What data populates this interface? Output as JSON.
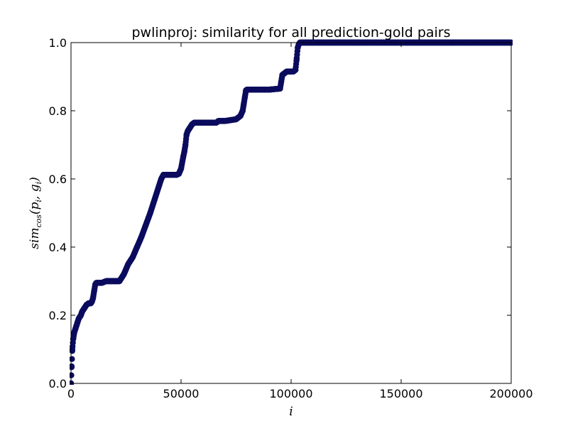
{
  "chart_data": {
    "type": "scatter",
    "title": "pwlinproj: similarity for all prediction-gold pairs",
    "xlabel": "i",
    "ylabel": "sim_cos(p_i, g_i)",
    "xlim": [
      0,
      200000
    ],
    "ylim": [
      0,
      1.0
    ],
    "xticks": [
      0,
      50000,
      100000,
      150000,
      200000
    ],
    "xtick_labels": [
      "0",
      "50000",
      "100000",
      "150000",
      "200000"
    ],
    "yticks": [
      0,
      0.2,
      0.4,
      0.6,
      0.8,
      1.0
    ],
    "ytick_labels": [
      "0.0",
      "0.2",
      "0.4",
      "0.6",
      "0.8",
      "1.0"
    ],
    "grid": false,
    "legend": "none",
    "marker_color": "#0b0b5e",
    "series": [
      {
        "x": [
          0,
          300,
          600,
          1000,
          1500,
          2000,
          2500,
          3000,
          3500,
          4500,
          5000,
          6000,
          7000,
          8000,
          9000,
          9500,
          10000,
          10500,
          11000,
          11500,
          12000,
          14000,
          16000,
          18000,
          20000,
          22000,
          22500,
          23000,
          24000,
          25000,
          26000,
          27000,
          28000,
          29000,
          30000,
          32000,
          34000,
          36000,
          38000,
          40000,
          41000,
          42000,
          45000,
          48000,
          49000,
          50000,
          51000,
          51500,
          52000,
          52500,
          53000,
          54000,
          55000,
          56000,
          58000,
          62000,
          66000,
          67000,
          68000,
          70000,
          75000,
          76000,
          77000,
          78000,
          78500,
          79000,
          79500,
          80000,
          85000,
          90000,
          95000,
          95500,
          96000,
          97000,
          98000,
          100000,
          101000,
          102000,
          102500,
          103000,
          103500,
          104000,
          110000,
          130000,
          150000,
          170000,
          200000
        ],
        "y": [
          0.0,
          0.05,
          0.1,
          0.13,
          0.15,
          0.16,
          0.17,
          0.18,
          0.19,
          0.2,
          0.21,
          0.22,
          0.23,
          0.235,
          0.235,
          0.24,
          0.25,
          0.27,
          0.29,
          0.295,
          0.295,
          0.295,
          0.3,
          0.3,
          0.3,
          0.3,
          0.305,
          0.31,
          0.32,
          0.335,
          0.35,
          0.36,
          0.37,
          0.385,
          0.4,
          0.43,
          0.465,
          0.5,
          0.54,
          0.58,
          0.6,
          0.612,
          0.612,
          0.612,
          0.615,
          0.63,
          0.665,
          0.68,
          0.7,
          0.73,
          0.74,
          0.75,
          0.76,
          0.765,
          0.765,
          0.765,
          0.765,
          0.77,
          0.77,
          0.77,
          0.775,
          0.78,
          0.785,
          0.8,
          0.82,
          0.84,
          0.86,
          0.862,
          0.862,
          0.862,
          0.865,
          0.885,
          0.905,
          0.91,
          0.915,
          0.915,
          0.915,
          0.92,
          0.95,
          0.985,
          0.995,
          1.0,
          1.0,
          1.0,
          1.0,
          1.0,
          1.0
        ]
      }
    ]
  }
}
